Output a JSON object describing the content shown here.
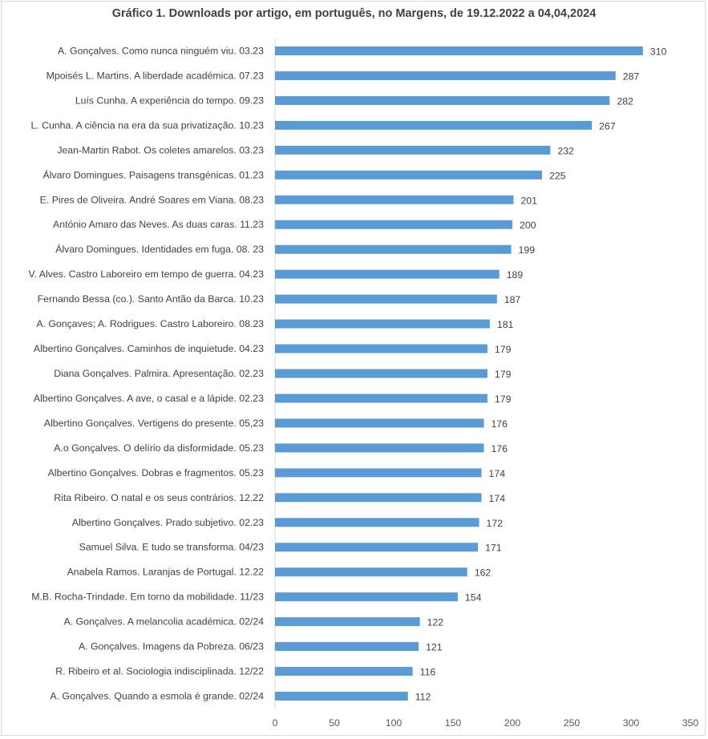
{
  "chart_data": {
    "type": "bar",
    "orientation": "horizontal",
    "title": "Gráfico 1. Downloads por artigo, em português, no Margens, de 19.12.2022 a 04,04,2024",
    "xlabel": "",
    "ylabel": "",
    "xlim": [
      0,
      350
    ],
    "xticks": [
      0,
      50,
      100,
      150,
      200,
      250,
      300,
      350
    ],
    "grid": false,
    "legend": "none",
    "bar_color": "#5b9bd5",
    "categories": [
      "A. Gonçalves. Como nunca ninguém viu. 03.23",
      "Mpoisés L. Martins. A liberdade académica. 07.23",
      "Luís Cunha. A experiência do tempo. 09.23",
      "L. Cunha. A ciência na era da sua privatização. 10.23",
      "Jean-Martin Rabot. Os coletes amarelos. 03.23",
      "Álvaro Domingues. Paisagens transgénicas. 01.23",
      "E. Pires de Oliveira. André Soares em Viana. 08.23",
      "António Amaro das Neves. As duas caras. 11.23",
      "Álvaro Domingues. Identidades em fuga. 08. 23",
      "V. Alves. Castro Laboreiro em tempo de guerra. 04.23",
      "Fernando Bessa (co.). Santo Antão da Barca. 10.23",
      "A. Gonçaves; A. Rodrigues. Castro Laboreiro. 08.23",
      "Albertino Gonçalves. Caminhos de inquietude. 04.23",
      "Diana Gonçalves. Palmira. Apresentação. 02.23",
      "Albertino Gonçalves. A ave, o casal e a lápide. 02.23",
      "Albertino Gonçalves. Vertigens do presente. 05,23",
      "A.o Gonçalves. O delírio da disformidade. 05.23",
      "Albertino Gonçalves. Dobras e fragmentos. 05.23",
      "Rita Ribeiro. O natal e os seus contrários. 12.22",
      "Albertino Gonçalves. Prado subjetivo. 02.23",
      "Samuel Silva. E tudo se transforma. 04/23",
      "Anabela Ramos. Laranjas de Portugal. 12.22",
      "M.B. Rocha-Trindade. Em torno da mobilidade. 11/23",
      "A. Gonçalves. A melancolia académica. 02/24",
      "A. Gonçalves. Imagens da Pobreza. 06/23",
      "R. Ribeiro et al. Sociologia indisciplinada. 12/22",
      "A. Gonçalves. Quando a esmola é grande. 02/24"
    ],
    "values": [
      310,
      287,
      282,
      267,
      232,
      225,
      201,
      200,
      199,
      189,
      187,
      181,
      179,
      179,
      179,
      176,
      176,
      174,
      174,
      172,
      171,
      162,
      154,
      122,
      121,
      116,
      112
    ]
  }
}
